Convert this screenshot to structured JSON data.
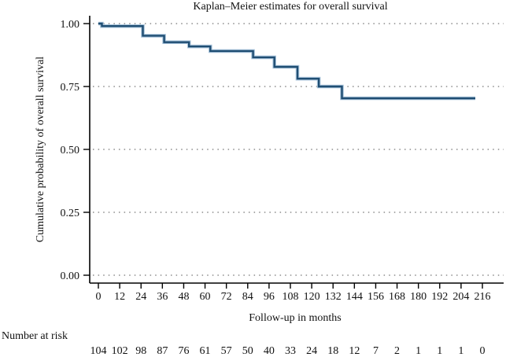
{
  "figure": {
    "title": "Kaplan–Meier estimates for overall survival",
    "x_label": "Follow-up in months",
    "y_label": "Cumulative probability of overall survival",
    "risk_label": "Number at risk"
  },
  "colors": {
    "curve": "#204e73",
    "curve_halo": "#a9c4db",
    "axis": "#000000",
    "grid_dots": "#8c8c8c",
    "text": "#111111",
    "background": "#ffffff"
  },
  "chart_data": {
    "type": "line",
    "subtype": "kaplan-meier-step",
    "title": "Kaplan–Meier estimates for overall survival",
    "xlabel": "Follow-up in months",
    "ylabel": "Cumulative probability of overall survival",
    "xlim": [
      0,
      216
    ],
    "ylim": [
      0.0,
      1.0
    ],
    "x_ticks": [
      0,
      12,
      24,
      36,
      48,
      60,
      72,
      84,
      96,
      108,
      120,
      132,
      144,
      156,
      168,
      180,
      192,
      204,
      216
    ],
    "y_ticks": [
      0.0,
      0.25,
      0.5,
      0.75,
      1.0
    ],
    "y_tick_labels": [
      "0.00",
      "0.25",
      "0.50",
      "0.75",
      "1.00"
    ],
    "grid": "horizontal-dotted",
    "legend": "none",
    "series": [
      {
        "name": "Overall survival",
        "type": "step",
        "points": [
          [
            0,
            1.0
          ],
          [
            2,
            0.99
          ],
          [
            25,
            0.952
          ],
          [
            37,
            0.926
          ],
          [
            51,
            0.909
          ],
          [
            63,
            0.891
          ],
          [
            87,
            0.866
          ],
          [
            99,
            0.828
          ],
          [
            112,
            0.781
          ],
          [
            124,
            0.75
          ],
          [
            137,
            0.703
          ],
          [
            212,
            0.703
          ]
        ]
      }
    ],
    "number_at_risk": {
      "label": "Number at risk",
      "times": [
        0,
        12,
        24,
        36,
        48,
        60,
        72,
        84,
        96,
        108,
        120,
        132,
        144,
        156,
        168,
        180,
        192,
        204,
        216
      ],
      "values": [
        104,
        102,
        98,
        87,
        76,
        61,
        57,
        50,
        40,
        33,
        24,
        18,
        12,
        7,
        2,
        1,
        1,
        1,
        0
      ]
    }
  }
}
